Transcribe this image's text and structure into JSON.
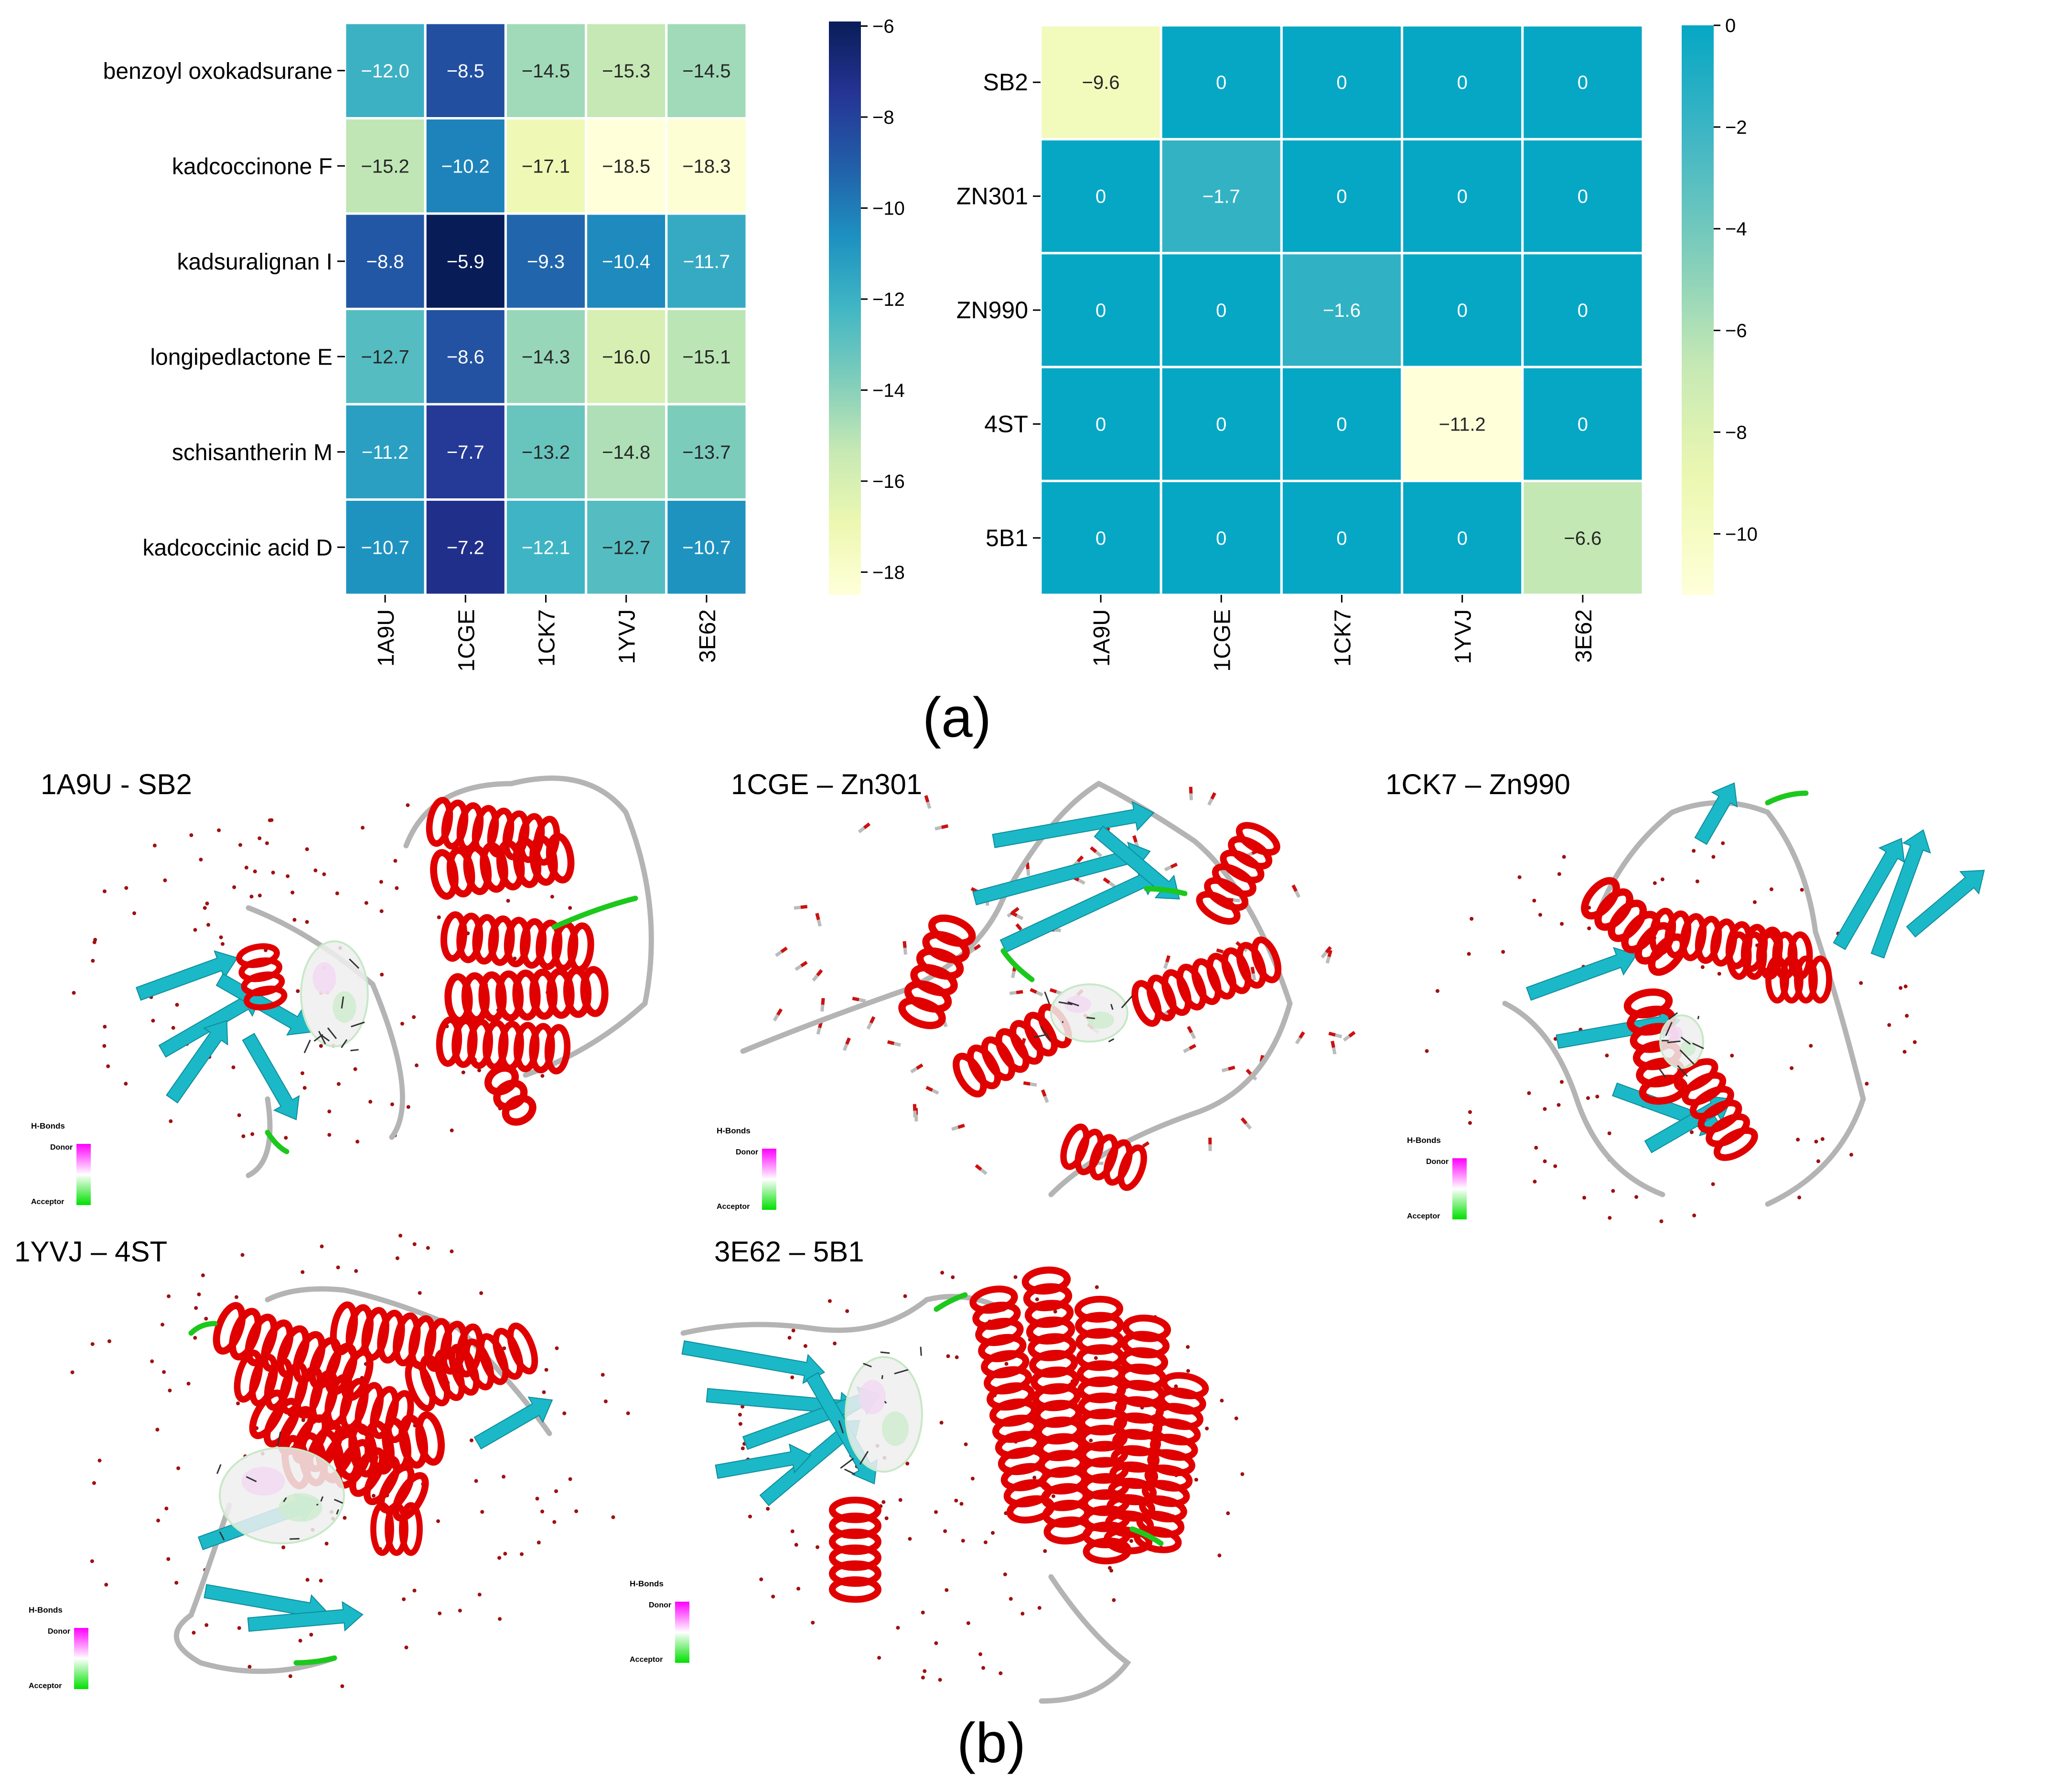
{
  "chart_data": [
    {
      "type": "heatmap",
      "title": "",
      "xlabel": "",
      "ylabel": "",
      "rows": [
        "benzoyl oxokadsurane",
        "kadcoccinone F",
        "kadsuralignan I",
        "longipedlactone E",
        "schisantherin M",
        "kadcoccinic acid D"
      ],
      "columns": [
        "1A9U",
        "1CGE",
        "1CK7",
        "1YVJ",
        "3E62"
      ],
      "values": [
        [
          -12.0,
          -8.5,
          -14.5,
          -15.3,
          -14.5
        ],
        [
          -15.2,
          -10.2,
          -17.1,
          -18.5,
          -18.3
        ],
        [
          -8.8,
          -5.9,
          -9.3,
          -10.4,
          -11.7
        ],
        [
          -12.7,
          -8.6,
          -14.3,
          -16.0,
          -15.1
        ],
        [
          -11.2,
          -7.7,
          -13.2,
          -14.8,
          -13.7
        ],
        [
          -10.7,
          -7.2,
          -12.1,
          -12.7,
          -10.7
        ]
      ],
      "value_labels": [
        [
          "−12.0",
          "−8.5",
          "−14.5",
          "−15.3",
          "−14.5"
        ],
        [
          "−15.2",
          "−10.2",
          "−17.1",
          "−18.5",
          "−18.3"
        ],
        [
          "−8.8",
          "−5.9",
          "−9.3",
          "−10.4",
          "−11.7"
        ],
        [
          "−12.7",
          "−8.6",
          "−14.3",
          "−16.0",
          "−15.1"
        ],
        [
          "−11.2",
          "−7.7",
          "−13.2",
          "−14.8",
          "−13.7"
        ],
        [
          "−10.7",
          "−7.2",
          "−12.1",
          "−12.7",
          "−10.7"
        ]
      ],
      "colorbar": {
        "vmin": -18.5,
        "vmax": -5.9,
        "ticks": [
          -6,
          -8,
          -10,
          -12,
          -14,
          -16,
          -18
        ],
        "tick_labels": [
          "−6",
          "−8",
          "−10",
          "−12",
          "−14",
          "−16",
          "−18"
        ],
        "colormap": "YlGnBu_r",
        "stops": [
          "#ffffd9",
          "#edf8b1",
          "#c7e9b4",
          "#7fcdbb",
          "#41b6c4",
          "#1d91c0",
          "#225ea8",
          "#253494",
          "#081d58"
        ]
      }
    },
    {
      "type": "heatmap",
      "title": "",
      "xlabel": "",
      "ylabel": "",
      "rows": [
        "SB2",
        "ZN301",
        "ZN990",
        "4ST",
        "5B1"
      ],
      "columns": [
        "1A9U",
        "1CGE",
        "1CK7",
        "1YVJ",
        "3E62"
      ],
      "values": [
        [
          -9.6,
          0,
          0,
          0,
          0
        ],
        [
          0,
          -1.7,
          0,
          0,
          0
        ],
        [
          0,
          0,
          -1.6,
          0,
          0
        ],
        [
          0,
          0,
          0,
          -11.2,
          0
        ],
        [
          0,
          0,
          0,
          0,
          -6.6
        ]
      ],
      "value_labels": [
        [
          "−9.6",
          "0",
          "0",
          "0",
          "0"
        ],
        [
          "0",
          "−1.7",
          "0",
          "0",
          "0"
        ],
        [
          "0",
          "0",
          "−1.6",
          "0",
          "0"
        ],
        [
          "0",
          "0",
          "0",
          "−11.2",
          "0"
        ],
        [
          "0",
          "0",
          "0",
          "0",
          "−6.6"
        ]
      ],
      "colorbar": {
        "vmin": -11.2,
        "vmax": 0,
        "ticks": [
          0,
          -2,
          -4,
          -6,
          -8,
          -10
        ],
        "tick_labels": [
          "0",
          "−2",
          "−4",
          "−6",
          "−8",
          "−10"
        ],
        "colormap": "YlGnBu_r (truncated)",
        "stops": [
          "#ffffd9",
          "#edf8b1",
          "#c7e9b4",
          "#7fcdbb",
          "#41b6c4",
          "#06a7c4"
        ]
      }
    }
  ],
  "panel_labels": {
    "a": "(a)",
    "b": "(b)"
  },
  "structures": [
    {
      "title": "1A9U - SB2"
    },
    {
      "title": "1CGE – Zn301"
    },
    {
      "title": "1CK7 – Zn990"
    },
    {
      "title": "1YVJ – 4ST"
    },
    {
      "title": "3E62 – 5B1"
    }
  ],
  "hbond_legend": {
    "title": "H-Bonds",
    "donor": "Donor",
    "acceptor": "Acceptor"
  },
  "colors": {
    "helix": "#e00000",
    "sheet": "#1bb8c8",
    "turn": "#1dc81d",
    "coil": "#b4b4b4",
    "water": "#a01010",
    "donor": "#ff00ff",
    "acceptor": "#00e000",
    "grid": "#ffffff"
  }
}
